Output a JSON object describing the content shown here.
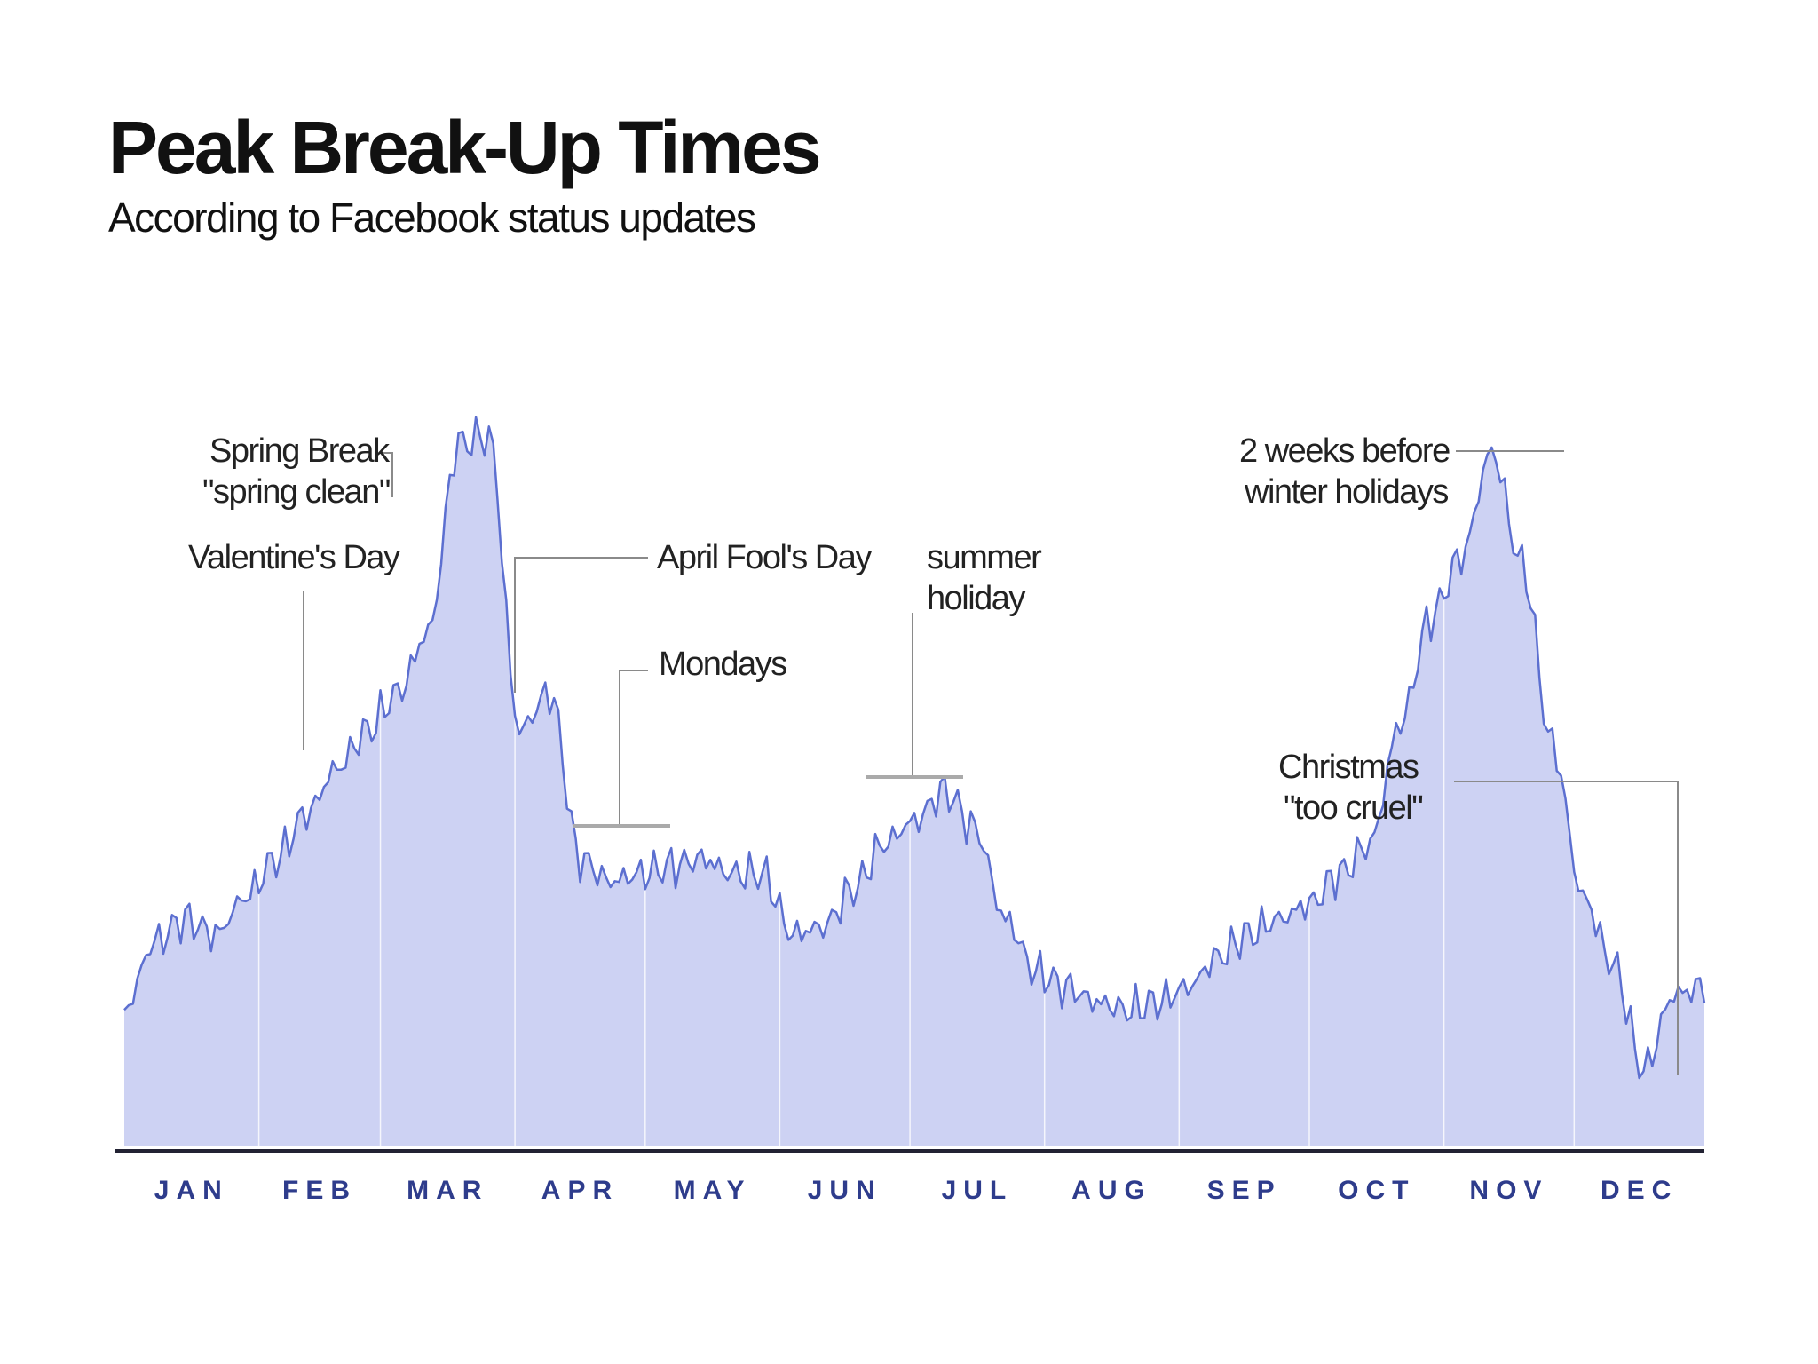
{
  "colors": {
    "area_fill": "#cdd2f3",
    "line": "#5c6fd0",
    "axis": "#222233",
    "month_labels": "#2e3c8c",
    "annotation_lines": "#8a8a8a",
    "month_dividers": "#ffffff"
  },
  "chart_data": {
    "type": "area",
    "title": "Peak Break-Up Times",
    "subtitle": "According to Facebook status updates",
    "xlabel": "",
    "ylabel": "",
    "grid": false,
    "legend": "none",
    "categories": [
      "JAN",
      "FEB",
      "MAR",
      "APR",
      "MAY",
      "JUN",
      "JUL",
      "AUG",
      "SEP",
      "OCT",
      "NOV",
      "DEC"
    ],
    "ylim": [
      0,
      100
    ],
    "x": [
      1,
      8,
      15,
      22,
      29,
      36,
      43,
      50,
      57,
      64,
      71,
      78,
      85,
      92,
      99,
      106,
      113,
      120,
      127,
      134,
      141,
      148,
      155,
      162,
      169,
      176,
      183,
      190,
      197,
      204,
      211,
      218,
      225,
      232,
      239,
      246,
      253,
      260,
      267,
      274,
      281,
      288,
      295,
      302,
      309,
      316,
      323,
      330,
      337,
      344,
      351,
      358,
      365
    ],
    "series": [
      {
        "values": [
          18,
          27,
          30,
          28,
          33,
          38,
          44,
          50,
          55,
          60,
          68,
          93,
          94,
          55,
          60,
          38,
          35,
          36,
          37,
          38,
          36,
          36,
          28,
          29,
          34,
          40,
          43,
          47,
          42,
          30,
          23,
          21,
          19,
          18,
          19,
          21,
          25,
          28,
          30,
          32,
          36,
          40,
          56,
          70,
          78,
          92,
          77,
          53,
          33,
          24,
          10,
          20,
          21
        ]
      }
    ],
    "annotations": [
      {
        "lines": [
          "Valentine's Day"
        ],
        "x": 46
      },
      {
        "lines": [
          "Spring Break",
          "\"spring clean\""
        ],
        "x": 78
      },
      {
        "lines": [
          "April Fool's Day"
        ],
        "x": 92
      },
      {
        "lines": [
          "Mondays"
        ],
        "x": 120
      },
      {
        "lines": [
          "summer",
          "holiday"
        ],
        "x": 188
      },
      {
        "lines": [
          "2 weeks before",
          "winter holidays"
        ],
        "x": 342
      },
      {
        "lines": [
          "Christmas",
          "\"too cruel\""
        ],
        "x": 359
      }
    ]
  }
}
